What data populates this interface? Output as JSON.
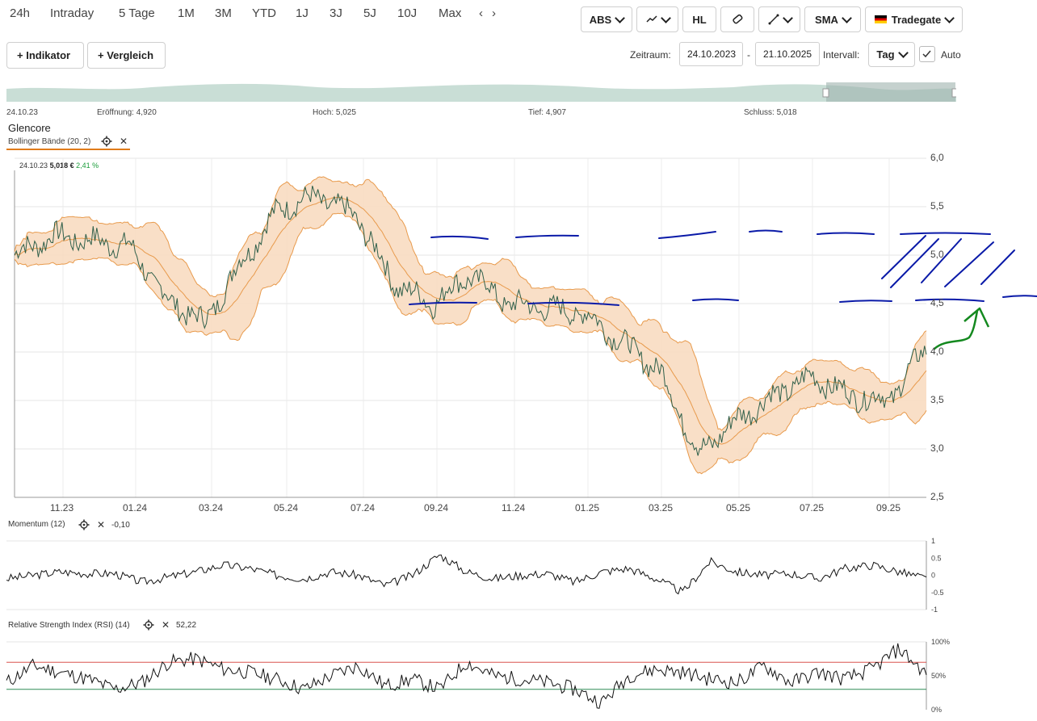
{
  "range_buttons": [
    "24h",
    "Intraday",
    "5 Tage",
    "1M",
    "3M",
    "YTD",
    "1J",
    "3J",
    "5J",
    "10J",
    "Max"
  ],
  "nav_arrows": {
    "left": "‹",
    "right": "›"
  },
  "toolbar": {
    "abs_label": "ABS",
    "hl_label": "HL",
    "sma_label": "SMA",
    "exchange_label": "Tradegate",
    "exchange_flag_colors": [
      "#000000",
      "#dd0000",
      "#ffce00"
    ]
  },
  "actions": {
    "indicator_label": "+ Indikator",
    "compare_label": "+ Vergleich"
  },
  "timeframe": {
    "zeitraum_label": "Zeitraum:",
    "from": "24.10.2023",
    "dash": "-",
    "to": "21.10.2025",
    "intervall_label": "Intervall:",
    "intervall_value": "Tag",
    "auto_label": "Auto",
    "auto_checked": true
  },
  "ohlc_strip": {
    "date": "24.10.23",
    "open": "Eröffnung: 4,920",
    "high": "Hoch: 5,025",
    "low": "Tief: 4,907",
    "close": "Schluss: 5,018"
  },
  "instrument": {
    "name": "Glencore"
  },
  "overlay": {
    "label": "Bollinger Bände (20, 2)",
    "close_symbol": "✕"
  },
  "price_tooltip": {
    "date": "24.10.23",
    "price": "5,018 €",
    "change": "2,41 %"
  },
  "colors": {
    "band_fill": "#f8d9bd",
    "band_line": "#e89a4c",
    "price_line": "#2f5f4a",
    "momentum": "#111111",
    "rsi_upper": "#d9534f",
    "rsi_lower": "#2e8b57",
    "annotation_blue": "#0a1aa8",
    "annotation_green": "#14891f",
    "accent": "#e07b1a"
  },
  "chart_data": [
    {
      "type": "line",
      "title": "Glencore",
      "y_ticks": [
        "6,0",
        "5,5",
        "5,0",
        "4,5",
        "4,0",
        "3,5",
        "3,0",
        "2,5"
      ],
      "x_ticks": [
        "11.23",
        "01.24",
        "03.24",
        "05.24",
        "07.24",
        "09.24",
        "11.24",
        "01.25",
        "03.25",
        "05.25",
        "07.25",
        "09.25"
      ],
      "ylim": [
        2.5,
        6.0
      ],
      "series": [
        {
          "name": "Glencore",
          "x": [
            "2023-10",
            "2023-11",
            "2023-12",
            "2024-01",
            "2024-02",
            "2024-03",
            "2024-04",
            "2024-05",
            "2024-06",
            "2024-07",
            "2024-08",
            "2024-09",
            "2024-10",
            "2024-11",
            "2024-12",
            "2025-01",
            "2025-02",
            "2025-03",
            "2025-04",
            "2025-05",
            "2025-06",
            "2025-07",
            "2025-08",
            "2025-09",
            "2025-10"
          ],
          "values": [
            5.0,
            5.2,
            5.15,
            5.1,
            4.55,
            4.3,
            4.95,
            5.5,
            5.6,
            5.4,
            4.7,
            4.5,
            4.8,
            4.5,
            4.45,
            4.4,
            4.1,
            3.8,
            2.95,
            3.3,
            3.55,
            3.75,
            3.55,
            3.5,
            4.05
          ]
        },
        {
          "name": "Bollinger Bände (20, 2)",
          "values": []
        }
      ],
      "grid": true
    },
    {
      "type": "line",
      "title": "Momentum (12)",
      "value_label": "-0,10",
      "y_ticks": [
        "1",
        "0.5",
        "0",
        "-0.5",
        "-1"
      ],
      "ylim": [
        -1,
        1
      ],
      "series": [
        {
          "name": "Momentum (12)",
          "values": [
            -0.1,
            0.0,
            0.1,
            0.05,
            0.05,
            -0.2,
            -0.05,
            0.1,
            0.3,
            0.2,
            0.0,
            -0.1,
            0.1,
            0.0,
            -0.3,
            0.0,
            0.6,
            0.1,
            -0.1,
            0.0,
            0.05,
            -0.2,
            0.1,
            0.2,
            -0.1,
            -0.5,
            0.4,
            0.1,
            0.0,
            0.05,
            -0.1,
            0.2,
            0.3,
            0.1,
            -0.1
          ]
        }
      ]
    },
    {
      "type": "line",
      "title": "Relative Strength Index (RSI) (14)",
      "value_label": "52,22",
      "y_ticks": [
        "100%",
        "50%",
        "0%"
      ],
      "ylim": [
        0,
        100
      ],
      "thresholds": [
        70,
        30
      ],
      "series": [
        {
          "name": "Relative Strength Index (RSI) (14)",
          "values": [
            40,
            65,
            55,
            45,
            30,
            40,
            70,
            75,
            60,
            55,
            45,
            30,
            50,
            65,
            35,
            45,
            30,
            70,
            50,
            45,
            40,
            30,
            10,
            50,
            60,
            55,
            45,
            40,
            65,
            40,
            55,
            45,
            60,
            90,
            52
          ]
        }
      ]
    }
  ]
}
